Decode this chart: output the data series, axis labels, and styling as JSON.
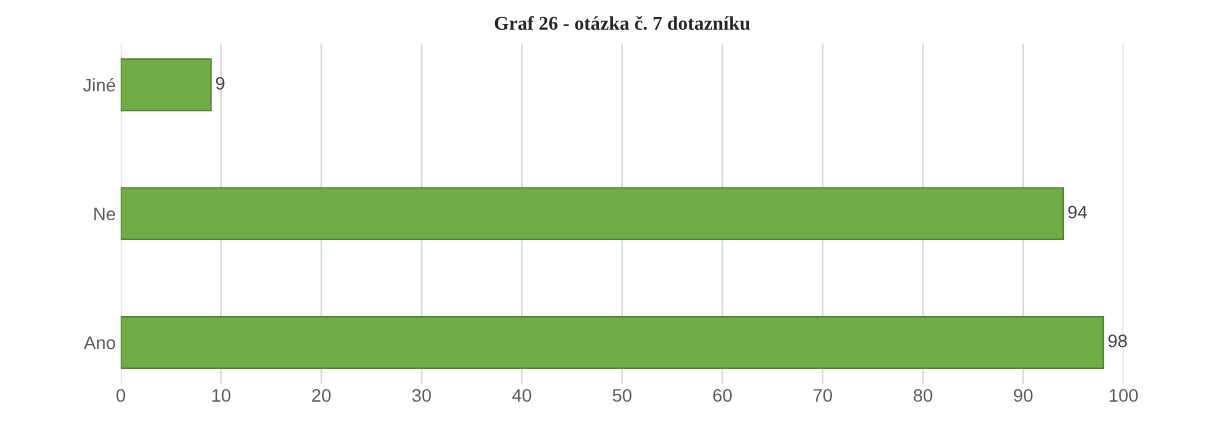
{
  "chart_data": {
    "type": "bar",
    "orientation": "horizontal",
    "title": "Graf 26 - otázka č. 7 dotazníku",
    "categories": [
      "Jiné",
      "Ne",
      "Ano"
    ],
    "values": [
      9,
      94,
      98
    ],
    "color": "#70ad47",
    "data_labels": true,
    "xlim": [
      0,
      100
    ],
    "xticks": [
      0,
      10,
      20,
      30,
      40,
      50,
      60,
      70,
      80,
      90,
      100
    ],
    "grid": "x"
  }
}
